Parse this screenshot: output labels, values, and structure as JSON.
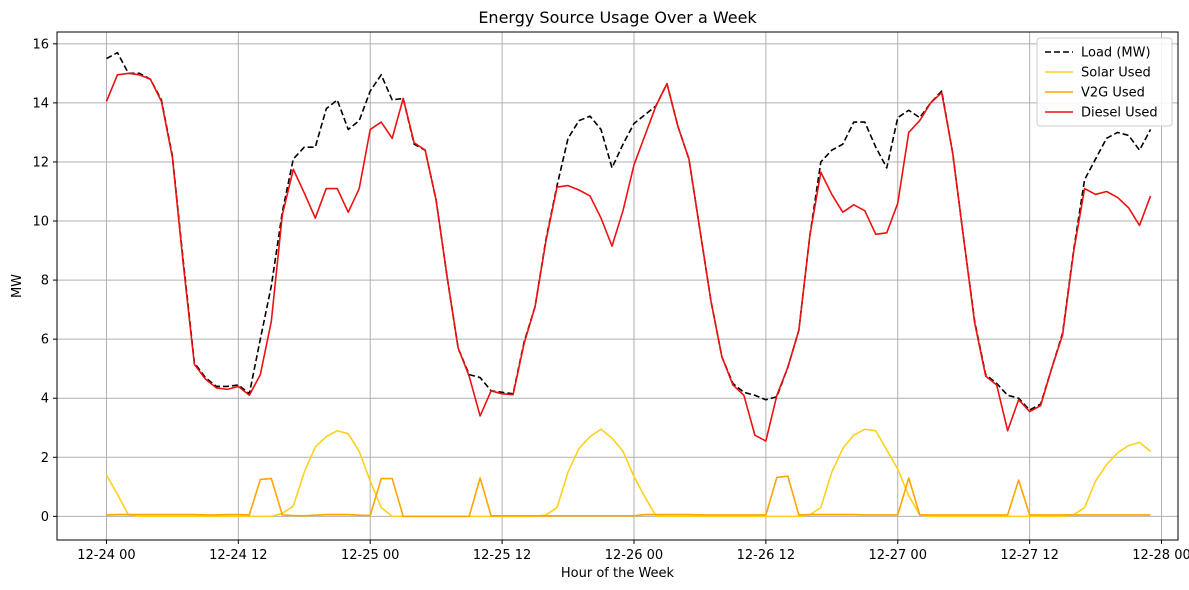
{
  "chart_data": {
    "type": "line",
    "title": "Energy Source Usage Over a Week",
    "xlabel": "Hour of the Week",
    "ylabel": "MW",
    "x_start": "12-24 00",
    "x_step_hours": 1,
    "xlim_hours": [
      -4.5,
      97.5
    ],
    "ylim": [
      -0.8,
      16.4
    ],
    "x_ticks": [
      {
        "hour": 0,
        "label": "12-24 00"
      },
      {
        "hour": 12,
        "label": "12-24 12"
      },
      {
        "hour": 24,
        "label": "12-25 00"
      },
      {
        "hour": 36,
        "label": "12-25 12"
      },
      {
        "hour": 48,
        "label": "12-26 00"
      },
      {
        "hour": 60,
        "label": "12-26 12"
      },
      {
        "hour": 72,
        "label": "12-27 00"
      },
      {
        "hour": 84,
        "label": "12-27 12"
      },
      {
        "hour": 96,
        "label": "12-28 00"
      }
    ],
    "y_ticks": [
      0,
      2,
      4,
      6,
      8,
      10,
      12,
      14,
      16
    ],
    "grid": true,
    "legend_position": "top-right",
    "series": [
      {
        "name": "Load (MW)",
        "color": "#000000",
        "dash": "dashed",
        "values": [
          15.5,
          15.7,
          15.0,
          15.0,
          14.8,
          14.1,
          12.2,
          8.6,
          5.2,
          4.7,
          4.4,
          4.4,
          4.45,
          4.15,
          6.0,
          7.8,
          10.3,
          12.1,
          12.5,
          12.5,
          13.8,
          14.1,
          13.1,
          13.4,
          14.4,
          14.95,
          14.1,
          14.15,
          12.6,
          12.4,
          10.7,
          8.1,
          5.7,
          4.8,
          4.7,
          4.25,
          4.2,
          4.15,
          5.9,
          7.1,
          9.4,
          11.2,
          12.8,
          13.4,
          13.55,
          13.1,
          11.8,
          12.6,
          13.3,
          13.6,
          13.9,
          14.65,
          13.2,
          12.1,
          9.7,
          7.3,
          5.4,
          4.5,
          4.2,
          4.1,
          3.95,
          4.05,
          5.05,
          6.3,
          9.5,
          12.0,
          12.4,
          12.6,
          13.35,
          13.35,
          12.5,
          11.8,
          13.5,
          13.75,
          13.5,
          14.0,
          14.4,
          12.3,
          9.4,
          6.6,
          4.8,
          4.5,
          4.1,
          4.0,
          3.6,
          3.8,
          5.0,
          6.2,
          9.0,
          11.4,
          12.1,
          12.8,
          13.0,
          12.9,
          12.4,
          13.1
        ]
      },
      {
        "name": "Solar Used",
        "color": "#ffd11a",
        "dash": "solid",
        "values": [
          1.4,
          0.75,
          0.05,
          0.0,
          0.0,
          0.0,
          0.0,
          0.0,
          0.0,
          0.0,
          0.0,
          0.0,
          0.0,
          0.0,
          0.0,
          0.0,
          0.1,
          0.35,
          1.5,
          2.35,
          2.7,
          2.9,
          2.8,
          2.2,
          1.2,
          0.3,
          0.0,
          0.0,
          0.0,
          0.0,
          0.0,
          0.0,
          0.0,
          0.0,
          0.0,
          0.0,
          0.0,
          0.0,
          0.0,
          0.0,
          0.05,
          0.3,
          1.5,
          2.3,
          2.7,
          2.95,
          2.65,
          2.2,
          1.35,
          0.65,
          0.02,
          0.0,
          0.0,
          0.0,
          0.0,
          0.0,
          0.0,
          0.0,
          0.0,
          0.0,
          0.0,
          0.0,
          0.0,
          0.0,
          0.05,
          0.3,
          1.5,
          2.3,
          2.75,
          2.95,
          2.9,
          2.25,
          1.6,
          0.7,
          0.05,
          0.0,
          0.0,
          0.0,
          0.0,
          0.0,
          0.0,
          0.0,
          0.0,
          0.0,
          0.0,
          0.0,
          0.0,
          0.0,
          0.05,
          0.3,
          1.2,
          1.75,
          2.15,
          2.4,
          2.5,
          2.2
        ]
      },
      {
        "name": "V2G Used",
        "color": "#ffa500",
        "dash": "solid",
        "values": [
          0.05,
          0.06,
          0.06,
          0.06,
          0.06,
          0.06,
          0.06,
          0.06,
          0.06,
          0.05,
          0.05,
          0.06,
          0.06,
          0.05,
          1.25,
          1.28,
          0.05,
          0.03,
          0.02,
          0.04,
          0.06,
          0.06,
          0.06,
          0.04,
          0.03,
          1.28,
          1.28,
          0.0,
          0.0,
          0.0,
          0.0,
          0.0,
          0.0,
          0.0,
          1.3,
          0.02,
          0.02,
          0.02,
          0.02,
          0.02,
          0.02,
          0.02,
          0.02,
          0.02,
          0.02,
          0.02,
          0.02,
          0.02,
          0.02,
          0.06,
          0.06,
          0.06,
          0.06,
          0.06,
          0.05,
          0.05,
          0.05,
          0.05,
          0.05,
          0.05,
          0.05,
          1.32,
          1.36,
          0.05,
          0.06,
          0.06,
          0.06,
          0.06,
          0.06,
          0.05,
          0.05,
          0.05,
          0.05,
          1.3,
          0.05,
          0.05,
          0.05,
          0.05,
          0.05,
          0.05,
          0.05,
          0.05,
          0.05,
          1.23,
          0.05,
          0.05,
          0.05,
          0.05,
          0.05,
          0.05,
          0.05,
          0.05,
          0.05,
          0.05,
          0.05,
          0.05
        ]
      },
      {
        "name": "Diesel Used",
        "color": "#ee1111",
        "dash": "solid",
        "values": [
          14.05,
          14.95,
          15.0,
          14.95,
          14.8,
          14.05,
          12.15,
          8.5,
          5.15,
          4.65,
          4.35,
          4.3,
          4.4,
          4.1,
          4.8,
          6.6,
          10.2,
          11.75,
          10.95,
          10.1,
          11.1,
          11.1,
          10.3,
          11.1,
          13.1,
          13.35,
          12.8,
          14.15,
          12.65,
          12.4,
          10.7,
          8.1,
          5.7,
          4.75,
          3.4,
          4.25,
          4.15,
          4.12,
          5.85,
          7.1,
          9.35,
          11.15,
          11.2,
          11.05,
          10.85,
          10.1,
          9.15,
          10.35,
          11.9,
          12.9,
          13.9,
          14.65,
          13.2,
          12.1,
          9.7,
          7.3,
          5.4,
          4.45,
          4.1,
          2.75,
          2.55,
          4.1,
          5.05,
          6.3,
          9.5,
          11.65,
          10.9,
          10.3,
          10.55,
          10.35,
          9.55,
          9.6,
          10.6,
          13.0,
          13.4,
          14.0,
          14.35,
          12.3,
          9.4,
          6.55,
          4.75,
          4.45,
          2.9,
          3.95,
          3.55,
          3.75,
          5.0,
          6.15,
          8.95,
          11.1,
          10.9,
          11.0,
          10.8,
          10.45,
          9.85,
          10.85
        ]
      }
    ]
  }
}
